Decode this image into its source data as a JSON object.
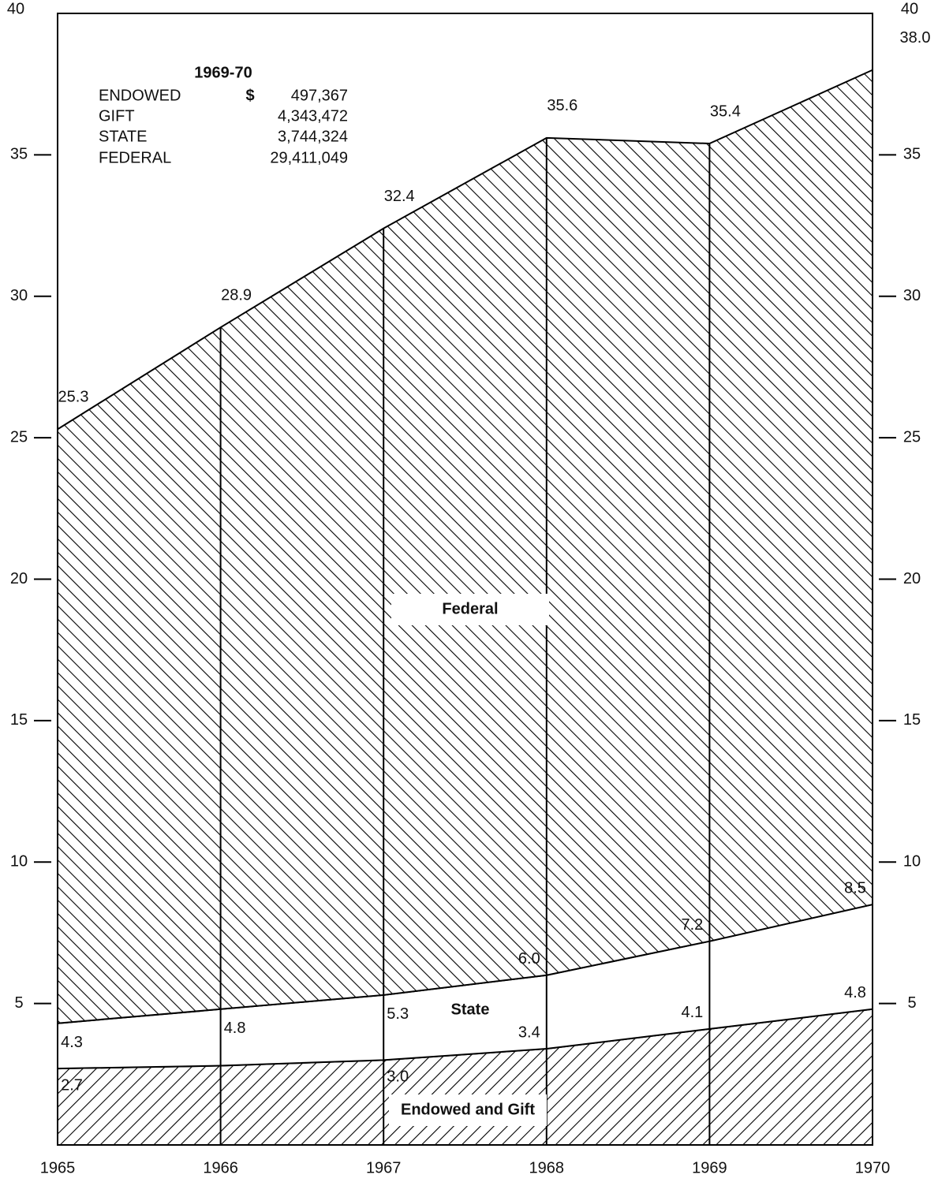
{
  "chart_data": {
    "type": "area",
    "x": [
      1965,
      1966,
      1967,
      1968,
      1969,
      1970
    ],
    "ylim": [
      0,
      40
    ],
    "yticks": [
      5,
      10,
      15,
      20,
      25,
      30,
      35,
      40
    ],
    "series": [
      {
        "name": "Endowed and Gift",
        "color": "#000000",
        "hatch": "slash",
        "values": [
          2.7,
          2.8,
          3.0,
          3.4,
          4.1,
          4.8
        ],
        "value_labels": [
          "2.7",
          null,
          "3.0",
          "3.4",
          "4.1",
          "4.8"
        ]
      },
      {
        "name": "State",
        "color": "#000000",
        "hatch": "none",
        "values": [
          4.3,
          4.8,
          5.3,
          6.0,
          7.2,
          8.5
        ],
        "value_labels": [
          "4.3",
          "4.8",
          "5.3",
          "6.0",
          "7.2",
          "8.5"
        ]
      },
      {
        "name": "Federal",
        "color": "#000000",
        "hatch": "backslash",
        "values": [
          25.3,
          28.9,
          32.4,
          35.6,
          35.4,
          38.0
        ],
        "value_labels": [
          "25.3",
          "28.9",
          "32.4",
          "35.6",
          "35.4",
          "38.0"
        ]
      }
    ],
    "inset": {
      "title": "1969-70",
      "rows": [
        [
          "ENDOWED",
          "$",
          "497,367"
        ],
        [
          "GIFT",
          "",
          "4,343,472"
        ],
        [
          "STATE",
          "",
          "3,744,324"
        ],
        [
          "FEDERAL",
          "",
          "29,411,049"
        ]
      ]
    }
  }
}
